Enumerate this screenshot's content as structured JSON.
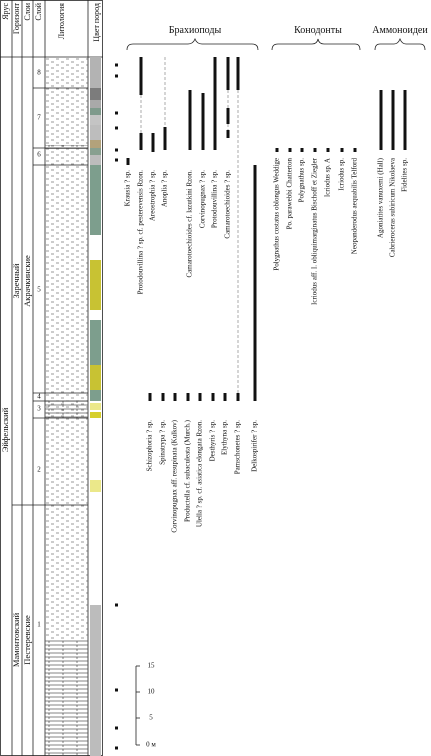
{
  "header": {
    "columns": [
      "Ярус",
      "Горизонт",
      "Слои",
      "Слой",
      "Литология",
      "Цвет пород"
    ]
  },
  "stratigraphy": {
    "stage": "Эйфельский",
    "horizons": [
      "Заречный",
      "Мамонтовский"
    ],
    "layers": [
      "Акрачкинские",
      "Пестеревские"
    ],
    "beds": [
      "8",
      "7",
      "6",
      "5",
      "4",
      "3",
      "2",
      "1"
    ]
  },
  "groups": [
    {
      "title": "Брахиоподы",
      "taxa": [
        "Krausia ? sp.",
        "Protodouvillina ? sp. cf. pesterevensis Rzon.",
        "Areostrophia ? sp.",
        "Anoplia ? sp.",
        "Camarotoechioides cf. lazutkini Rzon.",
        "Corvinopugnax ? sp.",
        "Protodouvillina ? sp.",
        "Camarotoechioides ? sp.",
        "Schizophoria ? sp.",
        "Spinatrypa ? sp.",
        "Corvinopugnax aff. resupinata (Kulkov)",
        "Productella cf. subaculeata (Murch.)",
        "Ulella ? sp. cf. asiatica elongata Rzon.",
        "Desthyris ? sp.",
        "Elythyna sp.",
        "Pamschonetes ? sp.",
        "Delkospirifer ? sp."
      ]
    },
    {
      "title": "Конодонты",
      "taxa": [
        "Polygnathus costatus oblongus Weddige",
        "Po. parawebbi Chatterton",
        "Polygnathus sp.",
        "Icriodus aff. I. obliquimarginatus Bischoff et Ziegler",
        "Icriodus sp. A",
        "Icriodus sp.",
        "Neopanderodus aequabilis Telford"
      ]
    },
    {
      "title": "Аммоноидеи",
      "taxa": [
        "Agoniatites vanuxemi (Hall)",
        "Cabrieroceras subiricum Nikolaeva",
        "Fidelites sp."
      ]
    }
  ],
  "scale": {
    "labels": [
      "15",
      "10",
      "5",
      "0 м"
    ]
  }
}
